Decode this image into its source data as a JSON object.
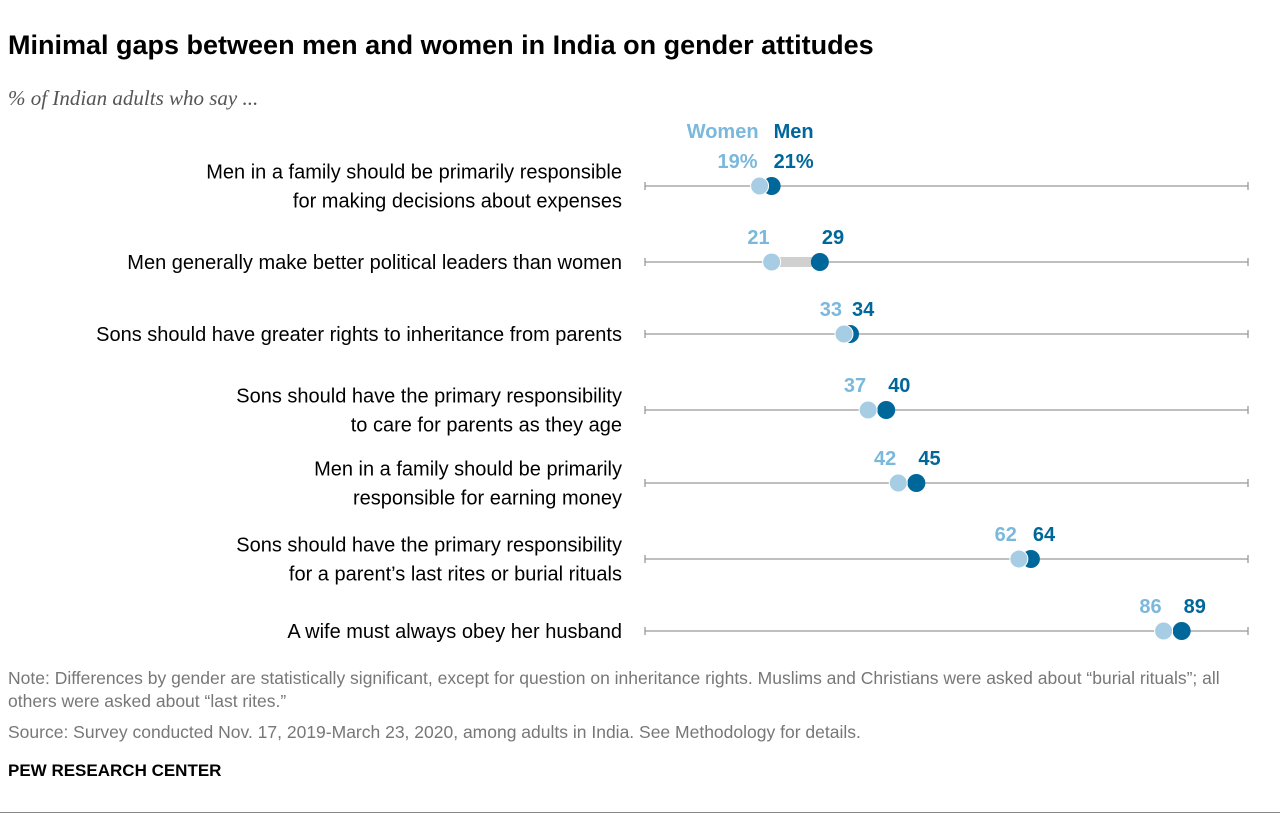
{
  "title": "Minimal gaps between men and women in India on gender attitudes",
  "subtitle": "% of Indian adults who say ...",
  "chart_data": {
    "type": "dot",
    "xlim": [
      0,
      100
    ],
    "series": [
      {
        "name": "Women",
        "color": "#a6cde3",
        "label_color": "#7ab8dc"
      },
      {
        "name": "Men",
        "color": "#00679a",
        "label_color": "#00679a"
      }
    ],
    "rows": [
      {
        "label": [
          "Men in a family should be primarily responsible",
          "for making decisions about expenses"
        ],
        "women": 19,
        "men": 21,
        "women_text": "19%",
        "men_text": "21%"
      },
      {
        "label": [
          "Men generally make better political leaders than women"
        ],
        "women": 21,
        "men": 29,
        "women_text": "21",
        "men_text": "29",
        "gap_bar": true
      },
      {
        "label": [
          "Sons should have greater rights to inheritance from parents"
        ],
        "women": 33,
        "men": 34,
        "women_text": "33",
        "men_text": "34"
      },
      {
        "label": [
          "Sons should have the primary responsibility",
          "to care for parents as they age"
        ],
        "women": 37,
        "men": 40,
        "women_text": "37",
        "men_text": "40"
      },
      {
        "label": [
          "Men in a family should be primarily",
          "responsible for earning money"
        ],
        "women": 42,
        "men": 45,
        "women_text": "42",
        "men_text": "45"
      },
      {
        "label": [
          "Sons should have the primary responsibility",
          "for a parent’s last rites or burial rituals"
        ],
        "women": 62,
        "men": 64,
        "women_text": "62",
        "men_text": "64"
      },
      {
        "label": [
          "A wife must always obey her husband"
        ],
        "women": 86,
        "men": 89,
        "women_text": "86",
        "men_text": "89"
      }
    ]
  },
  "note": "Note: Differences by gender are statistically significant, except for question on inheritance rights. Muslims and Christians were asked about “burial rituals”; all others were asked about “last rites.”",
  "source": "Source: Survey conducted Nov. 17, 2019-March 23, 2020, among adults in India. See Methodology for details.",
  "brand": "PEW RESEARCH CENTER"
}
